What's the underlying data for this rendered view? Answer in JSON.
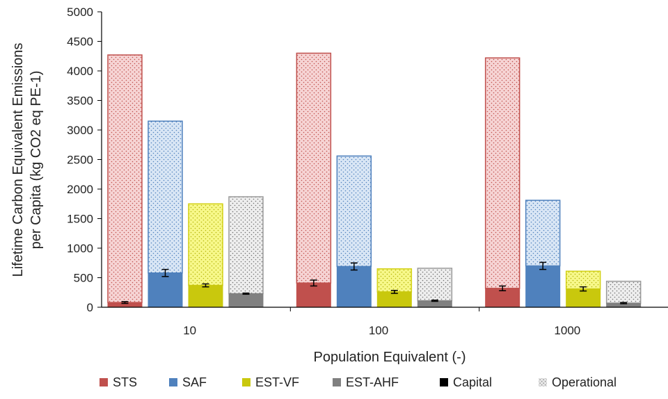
{
  "chart_data": {
    "type": "bar",
    "subtype": "stacked-grouped",
    "title": "",
    "xlabel": "Population Equivalent (-)",
    "ylabel": "Lifetime Carbon Equivalent Emissions per Capita (kg CO2 eq PE-1)",
    "ylabel_lines": [
      "Lifetime Carbon Equivalent Emissions",
      "per Capita (kg CO2 eq PE-1)"
    ],
    "ylim": [
      0,
      5000
    ],
    "yticks": [
      0,
      500,
      1000,
      1500,
      2000,
      2500,
      3000,
      3500,
      4000,
      4500,
      5000
    ],
    "ytick_labels": [
      "0",
      "500",
      "1000",
      "1500",
      "2000",
      "2500",
      "3000",
      "3500",
      "4000",
      "4500",
      "5000"
    ],
    "grid": false,
    "legend_position": "bottom",
    "categories": [
      "10",
      "100",
      "1000"
    ],
    "systems": [
      {
        "name": "STS",
        "color": "#c0504d",
        "light_color": "#f6d4d4",
        "stroke": "#c0504d",
        "capital": [
          80,
          410,
          320
        ],
        "total": [
          4270,
          4300,
          4220
        ],
        "error": [
          15,
          50,
          40
        ]
      },
      {
        "name": "SAF",
        "color": "#4f81bd",
        "light_color": "#d9e6f5",
        "stroke": "#4f81bd",
        "capital": [
          580,
          690,
          700
        ],
        "total": [
          3150,
          2560,
          1810
        ],
        "error": [
          60,
          60,
          60
        ]
      },
      {
        "name": "EST-VF",
        "color": "#c9c80d",
        "light_color": "#f7f88a",
        "stroke": "#d3d116",
        "capital": [
          370,
          260,
          310
        ],
        "total": [
          1750,
          650,
          610
        ],
        "error": [
          25,
          25,
          35
        ]
      },
      {
        "name": "EST-AHF",
        "color": "#808080",
        "light_color": "#e9e9e9",
        "stroke": "#9a9a9a",
        "capital": [
          230,
          110,
          70
        ],
        "total": [
          1870,
          660,
          440
        ],
        "error": [
          10,
          10,
          10
        ]
      }
    ],
    "legend": [
      {
        "label": "STS",
        "swatch": "solid",
        "color": "#c0504d"
      },
      {
        "label": "SAF",
        "swatch": "solid",
        "color": "#4f81bd"
      },
      {
        "label": "EST-VF",
        "swatch": "solid",
        "color": "#c9c80d"
      },
      {
        "label": "EST-AHF",
        "swatch": "solid",
        "color": "#808080"
      },
      {
        "label": "Capital",
        "swatch": "solid",
        "color": "#000000"
      },
      {
        "label": "Operational",
        "swatch": "dotted",
        "color": "#bdbdbd"
      }
    ]
  }
}
